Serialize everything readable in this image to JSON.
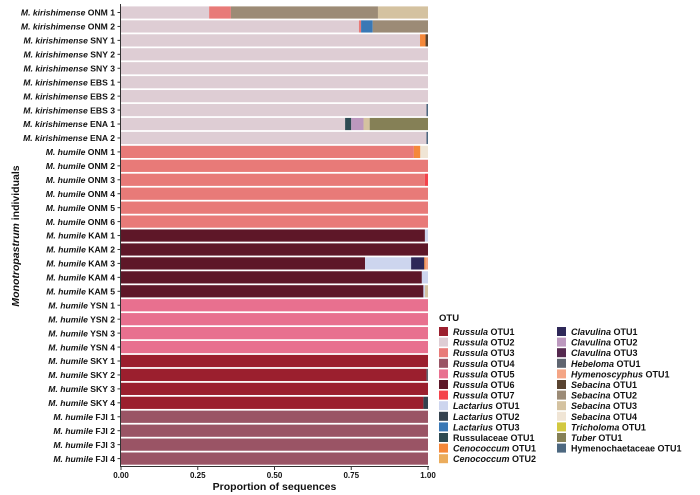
{
  "chart_data": {
    "type": "bar",
    "orientation": "horizontal",
    "stacked": true,
    "xlabel": "Proportion of sequences",
    "ylabel": {
      "italic": "Monotropastrum",
      "text": " individuals"
    },
    "xlim": [
      0,
      1
    ],
    "xticks": [
      "0.00",
      "0.25",
      "0.50",
      "0.75",
      "1.00"
    ],
    "grid": false,
    "legend": {
      "title": "OTU",
      "placement": "right",
      "items": [
        {
          "italic": "Russula",
          "text": " OTU1",
          "color": "#9B1F2E"
        },
        {
          "italic": "Russula",
          "text": " OTU2",
          "color": "#DECDD4"
        },
        {
          "italic": "Russula",
          "text": " OTU3",
          "color": "#E87A78"
        },
        {
          "italic": "Russula",
          "text": " OTU4",
          "color": "#9A5465"
        },
        {
          "italic": "Russula",
          "text": " OTU5",
          "color": "#E8708F"
        },
        {
          "italic": "Russula",
          "text": " OTU6",
          "color": "#5E1728"
        },
        {
          "italic": "Russula",
          "text": " OTU7",
          "color": "#F4434B"
        },
        {
          "italic": "Lactarius",
          "text": " OTU1",
          "color": "#CDD5EE"
        },
        {
          "italic": "Lactarius",
          "text": " OTU2",
          "color": "#34424F"
        },
        {
          "italic": "Lactarius",
          "text": " OTU3",
          "color": "#3A78B5"
        },
        {
          "italic": "",
          "text": "Russulaceae OTU1",
          "color": "#2E4A52"
        },
        {
          "italic": "Cenococcum",
          "text": " OTU1",
          "color": "#F5883A"
        },
        {
          "italic": "Cenococcum",
          "text": " OTU2",
          "color": "#EBAC5C"
        },
        {
          "italic": "Clavulina",
          "text": " OTU1",
          "color": "#2E2858"
        },
        {
          "italic": "Clavulina",
          "text": " OTU2",
          "color": "#BC98BE"
        },
        {
          "italic": "Clavulina",
          "text": " OTU3",
          "color": "#54284E"
        },
        {
          "italic": "Hebeloma",
          "text": " OTU1",
          "color": "#5F6570"
        },
        {
          "italic": "Hymenoscyphus",
          "text": " OTU1",
          "color": "#F4A585"
        },
        {
          "italic": "Sebacina",
          "text": " OTU1",
          "color": "#594330"
        },
        {
          "italic": "Sebacina",
          "text": " OTU2",
          "color": "#9C8B76"
        },
        {
          "italic": "Sebacina",
          "text": " OTU3",
          "color": "#D4C2A0"
        },
        {
          "italic": "Sebacina",
          "text": " OTU4",
          "color": "#F0E5D5"
        },
        {
          "italic": "Tricholoma",
          "text": " OTU1",
          "color": "#D2C840"
        },
        {
          "italic": "Tuber",
          "text": " OTU1",
          "color": "#858056"
        },
        {
          "italic": "",
          "text": "Hymenochaetaceae OTU1",
          "color": "#4D6880"
        }
      ]
    },
    "rows": [
      {
        "species": "M. kirishimense",
        "site": " ONM 1",
        "segments": [
          [
            "Russula OTU2",
            0.287
          ],
          [
            "Russula OTU3",
            0.071
          ],
          [
            "Sebacina OTU2",
            0.479
          ],
          [
            "Sebacina OTU3",
            0.163
          ]
        ]
      },
      {
        "species": "M. kirishimense",
        "site": " ONM 2",
        "segments": [
          [
            "Russula OTU2",
            0.775
          ],
          [
            "Russula OTU3",
            0.007
          ],
          [
            "Lactarius OTU3",
            0.038
          ],
          [
            "Sebacina OTU2",
            0.18
          ]
        ]
      },
      {
        "species": "M. kirishimense",
        "site": " SNY 1",
        "segments": [
          [
            "Russula OTU2",
            0.974
          ],
          [
            "Cenococcum OTU1",
            0.018
          ],
          [
            "Sebacina OTU1",
            0.008
          ]
        ]
      },
      {
        "species": "M. kirishimense",
        "site": " SNY 2",
        "segments": [
          [
            "Russula OTU2",
            1
          ]
        ]
      },
      {
        "species": "M. kirishimense",
        "site": " SNY 3",
        "segments": [
          [
            "Russula OTU2",
            1
          ]
        ]
      },
      {
        "species": "M. kirishimense",
        "site": " EBS 1",
        "segments": [
          [
            "Russula OTU2",
            1
          ]
        ]
      },
      {
        "species": "M. kirishimense",
        "site": " EBS 2",
        "segments": [
          [
            "Russula OTU2",
            1
          ]
        ]
      },
      {
        "species": "M. kirishimense",
        "site": " EBS 3",
        "segments": [
          [
            "Russula OTU2",
            0.995
          ],
          [
            "Hymenochaetaceae OTU1",
            0.005
          ]
        ]
      },
      {
        "species": "M. kirishimense",
        "site": " ENA 1",
        "segments": [
          [
            "Russula OTU2",
            0.73
          ],
          [
            "Russulaceae OTU1",
            0.02
          ],
          [
            "Clavulina OTU2",
            0.04
          ],
          [
            "Sebacina OTU3",
            0.02
          ],
          [
            "Tuber OTU1",
            0.19
          ]
        ]
      },
      {
        "species": "M. kirishimense",
        "site": " ENA 2",
        "segments": [
          [
            "Russula OTU2",
            0.995
          ],
          [
            "Hymenochaetaceae OTU1",
            0.005
          ]
        ]
      },
      {
        "species": "M. humile",
        "site": " ONM 1",
        "segments": [
          [
            "Russula OTU3",
            0.954
          ],
          [
            "Cenococcum OTU1",
            0.021
          ],
          [
            "Sebacina OTU4",
            0.025
          ]
        ]
      },
      {
        "species": "M. humile",
        "site": " ONM 2",
        "segments": [
          [
            "Russula OTU3",
            1
          ]
        ]
      },
      {
        "species": "M. humile",
        "site": " ONM 3",
        "segments": [
          [
            "Russula OTU3",
            0.99
          ],
          [
            "Russula OTU7",
            0.01
          ]
        ]
      },
      {
        "species": "M. humile",
        "site": " ONM 4",
        "segments": [
          [
            "Russula OTU3",
            1
          ]
        ]
      },
      {
        "species": "M. humile",
        "site": " ONM 5",
        "segments": [
          [
            "Russula OTU3",
            1
          ]
        ]
      },
      {
        "species": "M. humile",
        "site": " ONM 6",
        "segments": [
          [
            "Russula OTU3",
            1
          ]
        ]
      },
      {
        "species": "M. humile",
        "site": " KAM 1",
        "segments": [
          [
            "Russula OTU6",
            0.99
          ],
          [
            "Lactarius OTU1",
            0.01
          ]
        ]
      },
      {
        "species": "M. humile",
        "site": " KAM 2",
        "segments": [
          [
            "Russula OTU6",
            1
          ]
        ]
      },
      {
        "species": "M. humile",
        "site": " KAM 3",
        "segments": [
          [
            "Russula OTU6",
            0.795
          ],
          [
            "Lactarius OTU1",
            0.15
          ],
          [
            "Clavulina OTU1",
            0.043
          ],
          [
            "Cenococcum OTU1",
            0.004
          ],
          [
            "Hymenoscyphus OTU1",
            0.008
          ]
        ]
      },
      {
        "species": "M. humile",
        "site": " KAM 4",
        "segments": [
          [
            "Russula OTU6",
            0.98
          ],
          [
            "Lactarius OTU1",
            0.02
          ]
        ]
      },
      {
        "species": "M. humile",
        "site": " KAM 5",
        "segments": [
          [
            "Russula OTU6",
            0.985
          ],
          [
            "Lactarius OTU1",
            0.005
          ],
          [
            "Sebacina OTU3",
            0.01
          ]
        ]
      },
      {
        "species": "M. humile",
        "site": " YSN 1",
        "segments": [
          [
            "Russula OTU5",
            1
          ]
        ]
      },
      {
        "species": "M. humile",
        "site": " YSN 2",
        "segments": [
          [
            "Russula OTU5",
            1
          ]
        ]
      },
      {
        "species": "M. humile",
        "site": " YSN 3",
        "segments": [
          [
            "Russula OTU5",
            1
          ]
        ]
      },
      {
        "species": "M. humile",
        "site": " YSN 4",
        "segments": [
          [
            "Russula OTU5",
            1
          ]
        ]
      },
      {
        "species": "M. humile",
        "site": " SKY 1",
        "segments": [
          [
            "Russula OTU1",
            1
          ]
        ]
      },
      {
        "species": "M. humile",
        "site": " SKY 2",
        "segments": [
          [
            "Russula OTU1",
            0.995
          ],
          [
            "Hebeloma OTU1",
            0.005
          ]
        ]
      },
      {
        "species": "M. humile",
        "site": " SKY 3",
        "segments": [
          [
            "Russula OTU1",
            1
          ]
        ]
      },
      {
        "species": "M. humile",
        "site": " SKY 4",
        "segments": [
          [
            "Russula OTU1",
            0.985
          ],
          [
            "Lactarius OTU2",
            0.015
          ]
        ]
      },
      {
        "species": "M. humile",
        "site": " FJI 1",
        "segments": [
          [
            "Russula OTU4",
            1
          ]
        ]
      },
      {
        "species": "M. humile",
        "site": " FJI 2",
        "segments": [
          [
            "Russula OTU4",
            1
          ]
        ]
      },
      {
        "species": "M. humile",
        "site": " FJI 3",
        "segments": [
          [
            "Russula OTU4",
            1
          ]
        ]
      },
      {
        "species": "M. humile",
        "site": " FJI 4",
        "segments": [
          [
            "Russula OTU4",
            1
          ]
        ]
      }
    ]
  }
}
